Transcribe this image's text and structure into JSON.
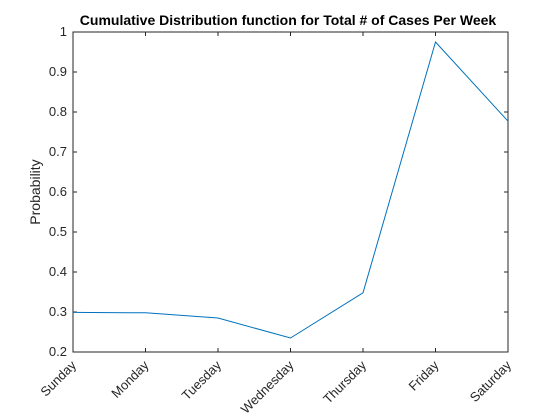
{
  "chart_data": {
    "type": "line",
    "title": "Cumulative Distribution function for Total # of Cases Per Week",
    "xlabel": "",
    "ylabel": "Probability",
    "categories": [
      "Sunday",
      "Monday",
      "Tuesday",
      "Wednesday",
      "Thursday",
      "Friday",
      "Saturday"
    ],
    "values": [
      0.299,
      0.298,
      0.285,
      0.235,
      0.348,
      0.975,
      0.777
    ],
    "ylim": [
      0.2,
      1
    ],
    "yticks": [
      "0.2",
      "0.3",
      "0.4",
      "0.5",
      "0.6",
      "0.7",
      "0.8",
      "0.9",
      "1"
    ],
    "grid": false,
    "line_color": "#0072bd",
    "axis_color": "#262626"
  }
}
